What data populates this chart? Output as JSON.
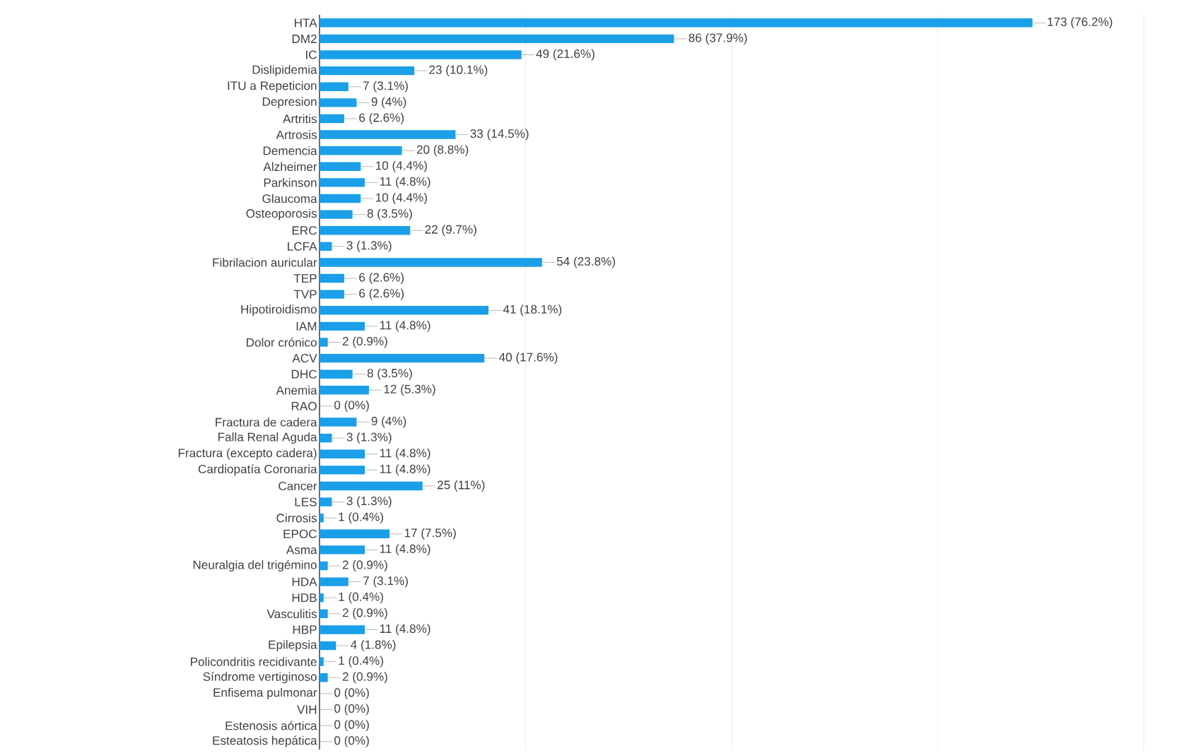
{
  "chart_data": {
    "type": "bar",
    "orientation": "horizontal",
    "categories": [
      "HTA",
      "DM2",
      "IC",
      "Dislipidemia",
      "ITU a Repeticion",
      "Depresion",
      "Artritis",
      "Artrosis",
      "Demencia",
      "Alzheimer",
      "Parkinson",
      "Glaucoma",
      "Osteoporosis",
      "ERC",
      "LCFA",
      "Fibrilacion auricular",
      "TEP",
      "TVP",
      "Hipotiroidismo",
      "IAM",
      "Dolor crónico",
      "ACV",
      "DHC",
      "Anemia",
      "RAO",
      "Fractura de cadera",
      "Falla Renal Aguda",
      "Fractura (excepto cadera)",
      "Cardiopatía Coronaria",
      "Cancer",
      "LES",
      "Cirrosis",
      "EPOC",
      "Asma",
      "Neuralgia del trigémino",
      "HDA",
      "HDB",
      "Vasculitis",
      "HBP",
      "Epilepsia",
      "Policondritis recidivante",
      "Síndrome vertiginoso",
      "Enfisema pulmonar",
      "VIH",
      "Estenosis aórtica",
      "Esteatosis hepática"
    ],
    "values": [
      173,
      86,
      49,
      23,
      7,
      9,
      6,
      33,
      20,
      10,
      11,
      10,
      8,
      22,
      3,
      54,
      6,
      6,
      41,
      11,
      2,
      40,
      8,
      12,
      0,
      9,
      3,
      11,
      11,
      25,
      3,
      1,
      17,
      11,
      2,
      7,
      1,
      2,
      11,
      4,
      1,
      2,
      0,
      0,
      0,
      0
    ],
    "value_labels": [
      "173 (76.2%)",
      "86 (37.9%)",
      "49 (21.6%)",
      "23 (10.1%)",
      "7 (3.1%)",
      "9 (4%)",
      "6 (2.6%)",
      "33 (14.5%)",
      "20 (8.8%)",
      "10 (4.4%)",
      "11 (4.8%)",
      "10 (4.4%)",
      "8 (3.5%)",
      "22 (9.7%)",
      "3 (1.3%)",
      "54 (23.8%)",
      "6 (2.6%)",
      "6 (2.6%)",
      "41 (18.1%)",
      "11 (4.8%)",
      "2 (0.9%)",
      "40 (17.6%)",
      "8 (3.5%)",
      "12 (5.3%)",
      "0 (0%)",
      "9 (4%)",
      "3 (1.3%)",
      "11 (4.8%)",
      "11 (4.8%)",
      "25 (11%)",
      "3 (1.3%)",
      "1 (0.4%)",
      "17 (7.5%)",
      "11 (4.8%)",
      "2 (0.9%)",
      "7 (3.1%)",
      "1 (0.4%)",
      "2 (0.9%)",
      "11 (4.8%)",
      "4 (1.8%)",
      "1 (0.4%)",
      "2 (0.9%)",
      "0 (0%)",
      "0 (0%)",
      "0 (0%)",
      "0 (0%)"
    ],
    "color": "#1a9fe8",
    "xlim": [
      0,
      200
    ],
    "xticks": [
      {
        "value": 50,
        "label": null
      },
      {
        "value": 100,
        "label": null
      },
      {
        "value": 150,
        "label": null
      },
      {
        "value": 200,
        "label": null
      }
    ],
    "grid": "x",
    "tick_labels": "y"
  }
}
